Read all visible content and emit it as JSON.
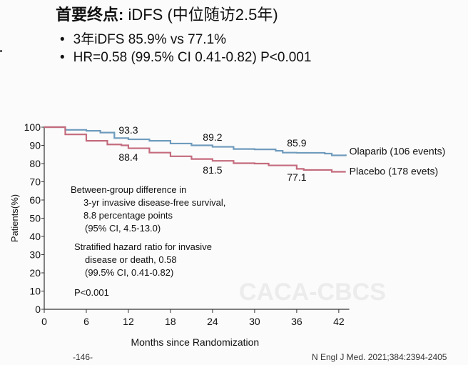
{
  "header": {
    "title_bold": "首要终点:",
    "title_rest": " iDFS (中位随访2.5年)",
    "bullets": [
      "3年iDFS 85.9% vs 77.1%",
      "HR=0.58 (99.5% CI 0.41-0.82) P<0.001"
    ]
  },
  "chart_data": {
    "type": "line",
    "xlabel": "Months since Randomization",
    "ylabel": "Patients(%)",
    "xlim": [
      0,
      43
    ],
    "ylim": [
      0,
      100
    ],
    "xticks": [
      0,
      6,
      12,
      18,
      24,
      30,
      36,
      42
    ],
    "yticks": [
      0,
      10,
      20,
      30,
      40,
      50,
      60,
      70,
      80,
      90,
      100
    ],
    "grid": false,
    "series": [
      {
        "name": "Olaparib (106 events)",
        "color": "#6f9bbd",
        "x": [
          0,
          3,
          6,
          8,
          10,
          12,
          15,
          18,
          21,
          24,
          27,
          30,
          33,
          34,
          36,
          40,
          41,
          42,
          43
        ],
        "y": [
          100,
          98.5,
          98,
          97,
          94,
          93.3,
          92.5,
          91,
          90,
          89.2,
          88,
          87.8,
          87,
          86,
          85.9,
          85.5,
          84.5,
          84.5,
          85
        ]
      },
      {
        "name": "Placebo (178 evets)",
        "color": "#c46b7d",
        "x": [
          0,
          3,
          6,
          9,
          11,
          12,
          15,
          18,
          21,
          24,
          27,
          30,
          32,
          36,
          37,
          40,
          41,
          43
        ],
        "y": [
          100,
          96,
          92.5,
          90.5,
          90,
          88.4,
          86,
          84,
          82.5,
          81.5,
          80.2,
          80,
          79,
          77.1,
          76.5,
          76.5,
          75.5,
          75.5
        ]
      }
    ],
    "annotations": [
      {
        "text": "93.3",
        "x": 12,
        "y": 96.5
      },
      {
        "text": "89.2",
        "x": 24,
        "y": 92.5
      },
      {
        "text": "85.9",
        "x": 36,
        "y": 89.5
      },
      {
        "text": "88.4",
        "x": 12,
        "y": 81.5
      },
      {
        "text": "81.5",
        "x": 24,
        "y": 74.5
      },
      {
        "text": "77.1",
        "x": 36,
        "y": 70.5
      }
    ],
    "notes": [
      "Between-group difference in",
      "3-yr invasive disease-free survival,",
      "8.8 percentage points",
      "(95% CI, 4.5-13.0)",
      "Stratified hazard ratio for invasive",
      "disease or death, 0.58",
      "(99.5% CI, 0.41-0.82)",
      "P<0.001"
    ]
  },
  "footer": {
    "page": "-146-",
    "citation": "N Engl J Med. 2021;384:2394-2405",
    "watermark": "CACA-CBCS"
  }
}
